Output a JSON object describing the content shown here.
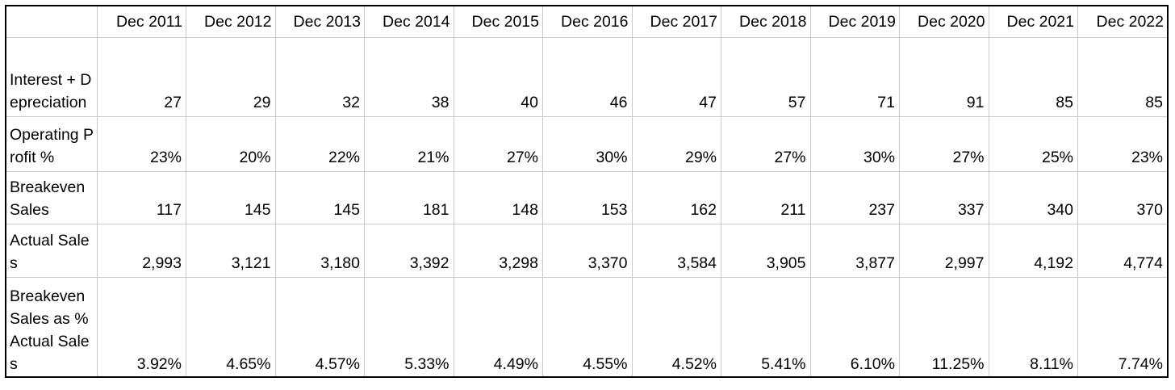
{
  "table": {
    "corner": "",
    "columns": [
      "Dec 2011",
      "Dec 2012",
      "Dec 2013",
      "Dec 2014",
      "Dec 2015",
      "Dec 2016",
      "Dec 2017",
      "Dec 2018",
      "Dec 2019",
      "Dec 2020",
      "Dec 2021",
      "Dec 2022"
    ],
    "rows": [
      {
        "label": "Interest + Depreciation",
        "values": [
          "27",
          "29",
          "32",
          "38",
          "40",
          "46",
          "47",
          "57",
          "71",
          "91",
          "85",
          "85"
        ]
      },
      {
        "label": "Operating Profit %",
        "values": [
          "23%",
          "20%",
          "22%",
          "21%",
          "27%",
          "30%",
          "29%",
          "27%",
          "30%",
          "27%",
          "25%",
          "23%"
        ]
      },
      {
        "label": "Breakeven Sales",
        "values": [
          "117",
          "145",
          "145",
          "181",
          "148",
          "153",
          "162",
          "211",
          "237",
          "337",
          "340",
          "370"
        ]
      },
      {
        "label": "Actual Sales",
        "values": [
          "2,993",
          "3,121",
          "3,180",
          "3,392",
          "3,298",
          "3,370",
          "3,584",
          "3,905",
          "3,877",
          "2,997",
          "4,192",
          "4,774"
        ]
      },
      {
        "label": "Breakeven Sales as % Actual Sales",
        "values": [
          "3.92%",
          "4.65%",
          "4.57%",
          "5.33%",
          "4.49%",
          "4.55%",
          "4.52%",
          "5.41%",
          "6.10%",
          "11.25%",
          "8.11%",
          "7.74%"
        ]
      }
    ]
  }
}
